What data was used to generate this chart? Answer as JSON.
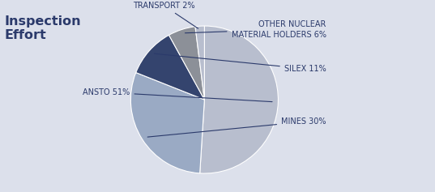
{
  "wedge_order": [
    "ANSTO",
    "MINES",
    "SILEX",
    "OTHER",
    "TRANSPORT"
  ],
  "values": [
    51,
    30,
    11,
    6,
    2
  ],
  "colors": [
    "#b8bece",
    "#9aaac4",
    "#34446e",
    "#8c9098",
    "#b8bece"
  ],
  "background_color": "#dce0eb",
  "text_color": "#2b3a6b",
  "label_fontsize": 7.0,
  "title_fontsize": 11.5,
  "title": "Inspection\nEffort",
  "startangle": 90
}
